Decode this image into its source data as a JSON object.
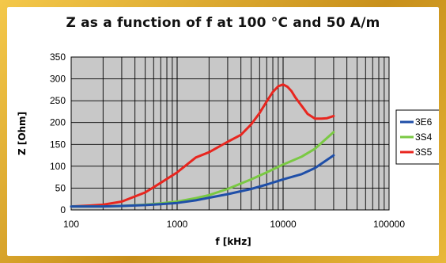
{
  "chart_data": {
    "type": "line",
    "title": "Z as a function of f at 100 °C and 50 A/m",
    "xlabel": "f [kHz]",
    "ylabel": "Z [Ohm]",
    "x_scale": "log",
    "xlim": [
      100,
      100000
    ],
    "ylim": [
      0,
      350
    ],
    "x_ticks": [
      "100",
      "1000",
      "10000",
      "100000"
    ],
    "y_ticks": [
      "0",
      "50",
      "100",
      "150",
      "200",
      "250",
      "300",
      "350"
    ],
    "grid": true,
    "legend_position": "right",
    "series": [
      {
        "name": "3E6",
        "color": "#1f4fa8",
        "x": [
          100,
          200,
          300,
          500,
          700,
          1000,
          1500,
          2000,
          3000,
          5000,
          7000,
          10000,
          15000,
          20000,
          30000
        ],
        "y": [
          8,
          8,
          9,
          11,
          13,
          16,
          22,
          28,
          36,
          48,
          58,
          70,
          82,
          96,
          125
        ]
      },
      {
        "name": "3S4",
        "color": "#7ac943",
        "x": [
          100,
          200,
          300,
          500,
          700,
          1000,
          1500,
          2000,
          3000,
          5000,
          7000,
          10000,
          15000,
          20000,
          30000
        ],
        "y": [
          8,
          8,
          9,
          12,
          15,
          19,
          27,
          34,
          48,
          70,
          86,
          104,
          122,
          140,
          178
        ]
      },
      {
        "name": "3S5",
        "color": "#e8261f",
        "x": [
          100,
          150,
          200,
          300,
          500,
          700,
          1000,
          1500,
          2000,
          3000,
          4000,
          5000,
          6000,
          7000,
          8000,
          9000,
          10000,
          11000,
          12000,
          13000,
          15000,
          17000,
          20000,
          23000,
          26000,
          30000
        ],
        "y": [
          8,
          10,
          12,
          19,
          40,
          62,
          86,
          120,
          132,
          156,
          172,
          196,
          222,
          248,
          270,
          283,
          287,
          282,
          272,
          258,
          238,
          220,
          209,
          209,
          210,
          215
        ]
      }
    ]
  }
}
